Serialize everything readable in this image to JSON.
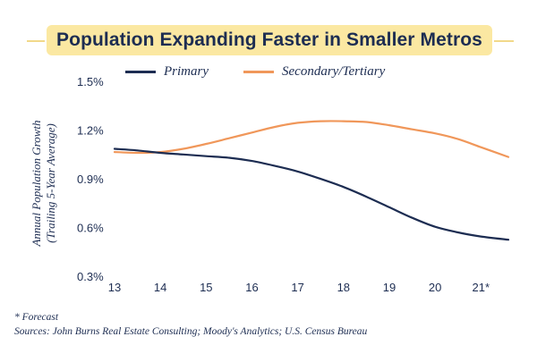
{
  "chart_data": {
    "type": "line",
    "title": "Population Expanding Faster in Smaller Metros",
    "ylabel_line1": "Annual Population Growth",
    "ylabel_line2": "(Trailing 5-Year Average)",
    "x_ticks": [
      "13",
      "14",
      "15",
      "16",
      "17",
      "18",
      "19",
      "20",
      "21*"
    ],
    "x": [
      13,
      13.5,
      14,
      14.5,
      15,
      15.5,
      16,
      16.5,
      17,
      17.5,
      18,
      18.5,
      19,
      19.5,
      20,
      20.5,
      21,
      21.6
    ],
    "ylim": [
      0.3,
      1.5
    ],
    "y_ticks": [
      0.3,
      0.6,
      0.9,
      1.2,
      1.5
    ],
    "y_tick_labels": [
      "0.3%",
      "0.6%",
      "0.9%",
      "1.2%",
      "1.5%"
    ],
    "grid": false,
    "legend_position": "top",
    "series": [
      {
        "name": "Primary",
        "color": "#1d2d52",
        "values": [
          1.09,
          1.08,
          1.065,
          1.055,
          1.045,
          1.035,
          1.015,
          0.985,
          0.95,
          0.905,
          0.855,
          0.795,
          0.73,
          0.665,
          0.61,
          0.575,
          0.55,
          0.53
        ]
      },
      {
        "name": "Secondary/Tertiary",
        "color": "#f0975a",
        "values": [
          1.07,
          1.065,
          1.07,
          1.09,
          1.12,
          1.155,
          1.19,
          1.225,
          1.25,
          1.26,
          1.26,
          1.255,
          1.235,
          1.21,
          1.185,
          1.15,
          1.1,
          1.04
        ]
      }
    ]
  },
  "footnotes": {
    "forecast": "* Forecast",
    "sources": "Sources: John Burns Real Estate Consulting; Moody's Analytics; U.S. Census Bureau"
  }
}
